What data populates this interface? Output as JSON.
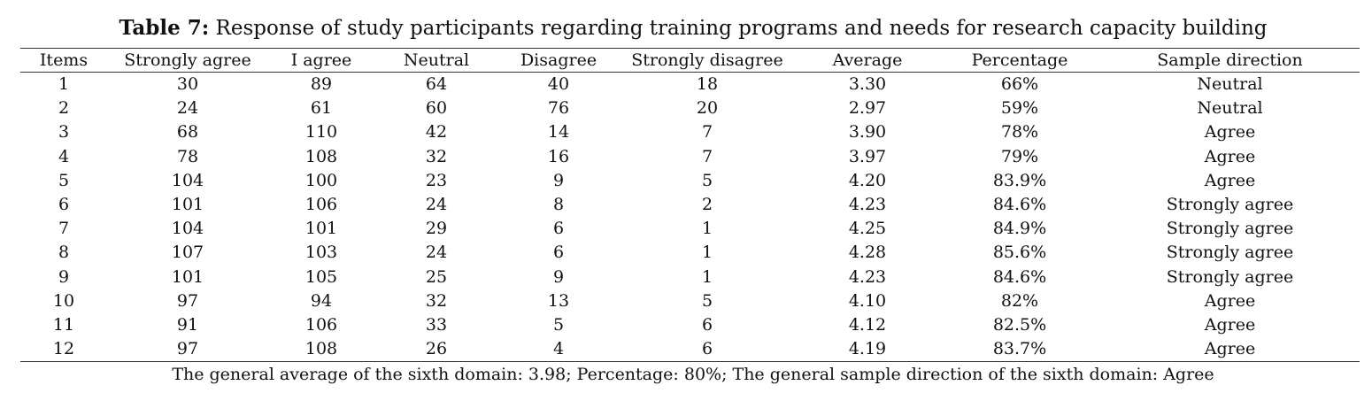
{
  "table": {
    "caption_label": "Table 7:",
    "caption_text": "Response of study participants regarding training programs and needs for research capacity building",
    "columns": [
      "Items",
      "Strongly agree",
      "I agree",
      "Neutral",
      "Disagree",
      "Strongly disagree",
      "Average",
      "Percentage",
      "Sample direction"
    ],
    "rows": [
      [
        "1",
        "30",
        "89",
        "64",
        "40",
        "18",
        "3.30",
        "66%",
        "Neutral"
      ],
      [
        "2",
        "24",
        "61",
        "60",
        "76",
        "20",
        "2.97",
        "59%",
        "Neutral"
      ],
      [
        "3",
        "68",
        "110",
        "42",
        "14",
        "7",
        "3.90",
        "78%",
        "Agree"
      ],
      [
        "4",
        "78",
        "108",
        "32",
        "16",
        "7",
        "3.97",
        "79%",
        "Agree"
      ],
      [
        "5",
        "104",
        "100",
        "23",
        "9",
        "5",
        "4.20",
        "83.9%",
        "Agree"
      ],
      [
        "6",
        "101",
        "106",
        "24",
        "8",
        "2",
        "4.23",
        "84.6%",
        "Strongly agree"
      ],
      [
        "7",
        "104",
        "101",
        "29",
        "6",
        "1",
        "4.25",
        "84.9%",
        "Strongly agree"
      ],
      [
        "8",
        "107",
        "103",
        "24",
        "6",
        "1",
        "4.28",
        "85.6%",
        "Strongly agree"
      ],
      [
        "9",
        "101",
        "105",
        "25",
        "9",
        "1",
        "4.23",
        "84.6%",
        "Strongly agree"
      ],
      [
        "10",
        "97",
        "94",
        "32",
        "13",
        "5",
        "4.10",
        "82%",
        "Agree"
      ],
      [
        "11",
        "91",
        "106",
        "33",
        "5",
        "6",
        "4.12",
        "82.5%",
        "Agree"
      ],
      [
        "12",
        "97",
        "108",
        "26",
        "4",
        "6",
        "4.19",
        "83.7%",
        "Agree"
      ]
    ],
    "footnote": "The general average of the sixth domain: 3.98; Percentage: 80%; The general sample direction of the sixth domain: Agree"
  }
}
